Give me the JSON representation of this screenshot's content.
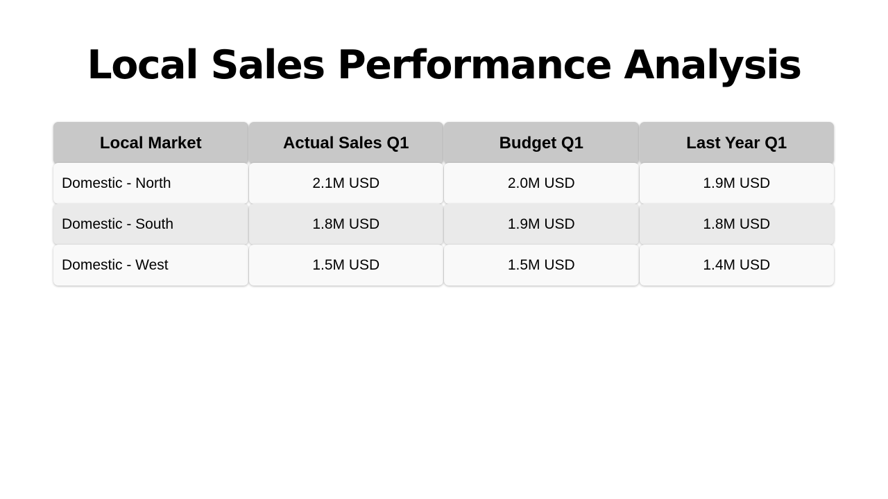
{
  "title": "Local Sales Performance Analysis",
  "table": {
    "headers": [
      "Local Market",
      "Actual Sales Q1",
      "Budget Q1",
      "Last Year Q1"
    ],
    "rows": [
      [
        "Domestic - North",
        "2.1M USD",
        "2.0M USD",
        "1.9M USD"
      ],
      [
        "Domestic - South",
        "1.8M USD",
        "1.9M USD",
        "1.8M USD"
      ],
      [
        "Domestic - West",
        "1.5M USD",
        "1.5M USD",
        "1.4M USD"
      ]
    ]
  },
  "colors": {
    "header_bg": "#c8c8c8",
    "row_light": "#f9f9f9",
    "row_dark": "#eaeaea",
    "text": "#000000"
  }
}
